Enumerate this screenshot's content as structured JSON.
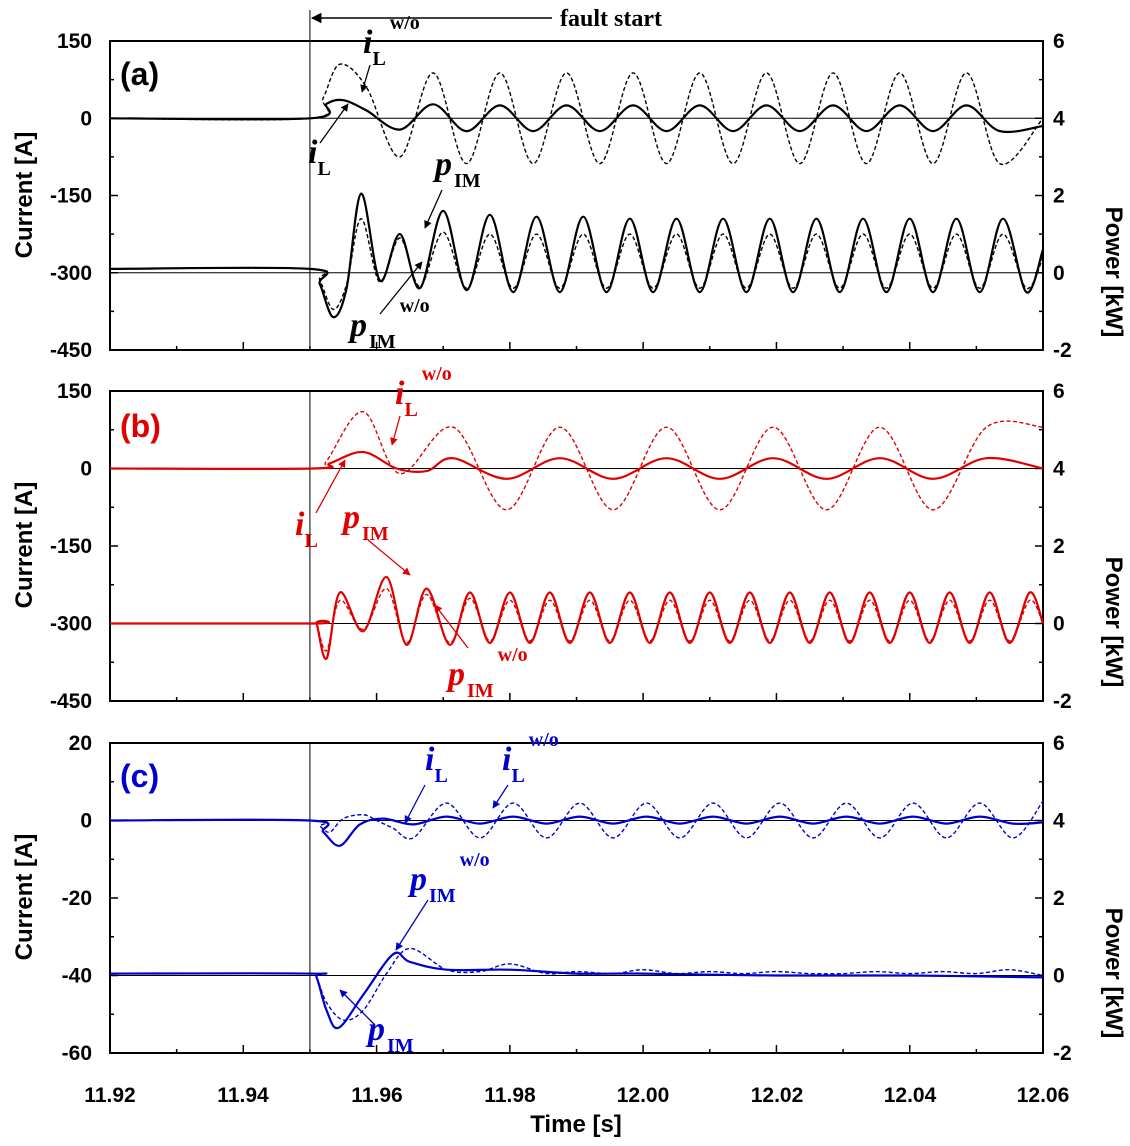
{
  "figure": {
    "fault_label": "fault start",
    "xlabel": "Time [s]",
    "ylabel_left": "Current [A]",
    "ylabel_right": "Power [kW]",
    "x_ticks": [
      "11.92",
      "11.94",
      "11.96",
      "11.98",
      "12.00",
      "12.02",
      "12.04",
      "12.06"
    ]
  },
  "chart_data": [
    {
      "panel": "(a)",
      "type": "line",
      "color": "#000000",
      "fault_time": 11.95,
      "xlim": [
        11.92,
        12.06
      ],
      "ylim_left": [
        -450,
        150
      ],
      "ylim_right": [
        -2,
        6
      ],
      "left_ticks": [
        "150",
        "0",
        "-150",
        "-300",
        "-450"
      ],
      "right_ticks": [
        "6",
        "4",
        "2",
        "0",
        "-2"
      ],
      "series": [
        {
          "name": "i_L^w/o",
          "style": "dashed",
          "axis": "left",
          "x": [
            11.92,
            11.95,
            11.952,
            11.9545,
            11.9585,
            11.9635,
            11.9685,
            11.9735,
            11.9785,
            11.9835,
            11.9885,
            11.9935,
            11.9985,
            12.0035,
            12.0085,
            12.0135,
            12.0185,
            12.0235,
            12.0285,
            12.0335,
            12.0385,
            12.0435,
            12.0485,
            12.0535,
            12.06
          ],
          "y": [
            0,
            0,
            40,
            105,
            60,
            -75,
            88,
            -88,
            88,
            -88,
            88,
            -88,
            88,
            -88,
            88,
            -88,
            88,
            -88,
            88,
            -88,
            88,
            -88,
            88,
            -88,
            0
          ]
        },
        {
          "name": "i_L",
          "style": "solid",
          "axis": "left",
          "x": [
            11.92,
            11.95,
            11.9525,
            11.955,
            11.9585,
            11.9635,
            11.9685,
            11.9735,
            11.9785,
            11.9835,
            11.9885,
            11.9935,
            11.9985,
            12.0035,
            12.0085,
            12.0135,
            12.0185,
            12.0235,
            12.0285,
            12.0335,
            12.0385,
            12.0435,
            12.0485,
            12.0535,
            12.06
          ],
          "y": [
            0,
            0,
            28,
            35,
            15,
            -22,
            27,
            -25,
            25,
            -25,
            25,
            -25,
            25,
            -25,
            25,
            -25,
            25,
            -25,
            25,
            -25,
            25,
            -25,
            25,
            -25,
            -15
          ]
        },
        {
          "name": "p_IM",
          "style": "solid",
          "axis": "right",
          "x": [
            11.92,
            11.95,
            11.9515,
            11.9535,
            11.9555,
            11.9577,
            11.9605,
            11.9635,
            11.9665,
            11.97,
            11.9735,
            11.977,
            11.9805,
            11.984,
            11.9875,
            11.991,
            11.9945,
            11.998,
            12.0015,
            12.005,
            12.0085,
            12.012,
            12.0155,
            12.019,
            12.0225,
            12.026,
            12.0295,
            12.033,
            12.0365,
            12.04,
            12.0435,
            12.047,
            12.0505,
            12.054,
            12.0575,
            12.06
          ],
          "y": [
            0.1,
            0.1,
            -0.3,
            -1.15,
            -0.4,
            2.05,
            -0.2,
            1.0,
            -0.4,
            1.6,
            -0.45,
            1.5,
            -0.5,
            1.45,
            -0.5,
            1.45,
            -0.5,
            1.4,
            -0.5,
            1.4,
            -0.5,
            1.4,
            -0.5,
            1.4,
            -0.5,
            1.4,
            -0.5,
            1.4,
            -0.5,
            1.4,
            -0.5,
            1.4,
            -0.5,
            1.4,
            -0.5,
            0.6
          ]
        },
        {
          "name": "p_IM^w/o",
          "style": "dashed",
          "axis": "right",
          "x": [
            11.92,
            11.95,
            11.9515,
            11.9535,
            11.9555,
            11.9577,
            11.9605,
            11.9635,
            11.9665,
            11.97,
            11.9735,
            11.977,
            11.9805,
            11.984,
            11.9875,
            11.991,
            11.9945,
            11.998,
            12.0015,
            12.005,
            12.0085,
            12.012,
            12.0155,
            12.019,
            12.0225,
            12.026,
            12.0295,
            12.033,
            12.0365,
            12.04,
            12.0435,
            12.047,
            12.0505,
            12.054,
            12.0575,
            12.06
          ],
          "y": [
            0.1,
            0.1,
            -0.2,
            -0.95,
            -0.3,
            1.4,
            -0.25,
            0.9,
            -0.35,
            1.05,
            -0.4,
            1.0,
            -0.4,
            1.0,
            -0.4,
            1.0,
            -0.4,
            1.0,
            -0.4,
            1.0,
            -0.4,
            1.0,
            -0.4,
            1.0,
            -0.4,
            1.0,
            -0.4,
            1.0,
            -0.4,
            1.0,
            -0.4,
            1.0,
            -0.4,
            1.0,
            -0.4,
            0.4
          ]
        }
      ],
      "annotations": [
        {
          "text": "i",
          "sub": "L",
          "sup": "w/o"
        },
        {
          "text": "i",
          "sub": "L",
          "sup": ""
        },
        {
          "text": "p",
          "sub": "IM",
          "sup": ""
        },
        {
          "text": "p",
          "sub": "IM",
          "sup": "w/o"
        }
      ]
    },
    {
      "panel": "(b)",
      "type": "line",
      "color": "#e00000",
      "fault_time": 11.95,
      "xlim": [
        11.92,
        12.06
      ],
      "ylim_left": [
        -450,
        150
      ],
      "ylim_right": [
        -2,
        6
      ],
      "left_ticks": [
        "150",
        "0",
        "-150",
        "-300",
        "-450"
      ],
      "right_ticks": [
        "6",
        "4",
        "2",
        "0",
        "-2"
      ],
      "series": [
        {
          "name": "i_L^w/o",
          "style": "dashed",
          "axis": "left",
          "x": [
            11.92,
            11.9505,
            11.9525,
            11.958,
            11.9635,
            11.9715,
            11.9795,
            11.9875,
            11.9955,
            12.0035,
            12.0115,
            12.0195,
            12.0275,
            12.0355,
            12.0435,
            12.0515,
            12.06
          ],
          "y": [
            0,
            0,
            15,
            110,
            -10,
            80,
            -80,
            80,
            -80,
            80,
            -80,
            80,
            -80,
            80,
            -80,
            80,
            80
          ]
        },
        {
          "name": "i_L",
          "style": "solid",
          "axis": "left",
          "x": [
            11.92,
            11.9505,
            11.953,
            11.958,
            11.963,
            11.9675,
            11.9715,
            11.9795,
            11.9875,
            11.9955,
            12.0035,
            12.0115,
            12.0195,
            12.0275,
            12.0355,
            12.0435,
            12.0515,
            12.06
          ],
          "y": [
            0,
            0,
            10,
            32,
            0,
            -5,
            20,
            -20,
            20,
            -20,
            20,
            -20,
            20,
            -20,
            20,
            -20,
            20,
            0
          ]
        },
        {
          "name": "p_IM",
          "style": "solid",
          "axis": "right",
          "x": [
            11.92,
            11.9505,
            11.951,
            11.9525,
            11.9545,
            11.958,
            11.9615,
            11.9645,
            11.9675,
            11.971,
            11.974,
            11.977,
            11.98,
            11.983,
            11.986,
            11.989,
            11.992,
            11.995,
            11.998,
            12.001,
            12.004,
            12.007,
            12.01,
            12.013,
            12.016,
            12.019,
            12.022,
            12.025,
            12.028,
            12.031,
            12.034,
            12.037,
            12.04,
            12.043,
            12.046,
            12.049,
            12.052,
            12.055,
            12.058,
            12.06
          ],
          "y": [
            0,
            0,
            0,
            -0.9,
            0.8,
            -0.2,
            1.2,
            -0.55,
            0.9,
            -0.55,
            0.8,
            -0.5,
            0.8,
            -0.5,
            0.8,
            -0.5,
            0.8,
            -0.5,
            0.8,
            -0.5,
            0.8,
            -0.5,
            0.8,
            -0.5,
            0.8,
            -0.5,
            0.8,
            -0.5,
            0.8,
            -0.5,
            0.8,
            -0.5,
            0.8,
            -0.5,
            0.8,
            -0.5,
            0.8,
            -0.5,
            0.8,
            0
          ]
        },
        {
          "name": "p_IM^w/o",
          "style": "dashed",
          "axis": "right",
          "x": [
            11.92,
            11.9505,
            11.951,
            11.9525,
            11.9545,
            11.958,
            11.9615,
            11.9645,
            11.9675,
            11.971,
            11.974,
            11.977,
            11.98,
            11.983,
            11.986,
            11.989,
            11.992,
            11.995,
            11.998,
            12.001,
            12.004,
            12.007,
            12.01,
            12.013,
            12.016,
            12.019,
            12.022,
            12.025,
            12.028,
            12.031,
            12.034,
            12.037,
            12.04,
            12.043,
            12.046,
            12.049,
            12.052,
            12.055,
            12.058,
            12.06
          ],
          "y": [
            0,
            0,
            0,
            -0.7,
            0.6,
            -0.15,
            0.9,
            -0.5,
            0.75,
            -0.5,
            0.65,
            -0.45,
            0.6,
            -0.45,
            0.6,
            -0.45,
            0.6,
            -0.45,
            0.6,
            -0.45,
            0.6,
            -0.45,
            0.6,
            -0.45,
            0.6,
            -0.45,
            0.6,
            -0.45,
            0.6,
            -0.45,
            0.6,
            -0.45,
            0.6,
            -0.45,
            0.6,
            -0.45,
            0.6,
            -0.45,
            0.6,
            0
          ]
        }
      ],
      "annotations": [
        {
          "text": "i",
          "sub": "L",
          "sup": "w/o"
        },
        {
          "text": "i",
          "sub": "L",
          "sup": ""
        },
        {
          "text": "p",
          "sub": "IM",
          "sup": ""
        },
        {
          "text": "p",
          "sub": "IM",
          "sup": "w/o"
        }
      ]
    },
    {
      "panel": "(c)",
      "type": "line",
      "color": "#0000cc",
      "fault_time": 11.95,
      "xlim": [
        11.92,
        12.06
      ],
      "ylim_left": [
        -60,
        20
      ],
      "ylim_right": [
        -2,
        6
      ],
      "left_ticks": [
        "20",
        "0",
        "-20",
        "-40",
        "-60"
      ],
      "right_ticks": [
        "6",
        "4",
        "2",
        "0",
        "-2"
      ],
      "series": [
        {
          "name": "i_L^w/o",
          "style": "dashed",
          "axis": "left",
          "x": [
            11.92,
            11.95,
            11.9515,
            11.953,
            11.955,
            11.958,
            11.96,
            11.9625,
            11.9655,
            11.9705,
            11.9755,
            11.9805,
            11.9855,
            11.9905,
            11.9955,
            12.0005,
            12.0055,
            12.0105,
            12.0155,
            12.0205,
            12.0255,
            12.0305,
            12.0355,
            12.0405,
            12.0455,
            12.0505,
            12.0555,
            12.06
          ],
          "y": [
            0,
            0,
            -1.5,
            -3,
            0.5,
            1.5,
            0,
            -2,
            -4.5,
            4.5,
            -4.5,
            4.5,
            -4.5,
            4.5,
            -4.5,
            4.5,
            -4.5,
            4.5,
            -4.5,
            4.5,
            -4.5,
            4.5,
            -4.5,
            4.5,
            -4.5,
            4.5,
            -4.5,
            5
          ]
        },
        {
          "name": "i_L",
          "style": "solid",
          "axis": "left",
          "x": [
            11.92,
            11.95,
            11.952,
            11.9545,
            11.9575,
            11.961,
            11.9655,
            11.9705,
            11.9755,
            11.9805,
            11.9855,
            11.9905,
            11.9955,
            12.0005,
            12.0055,
            12.0105,
            12.0155,
            12.0205,
            12.0255,
            12.0305,
            12.0355,
            12.0405,
            12.0455,
            12.0505,
            12.0555,
            12.06
          ],
          "y": [
            0,
            0,
            -3,
            -6.5,
            -1,
            0.5,
            -1,
            1,
            -0.8,
            1,
            -0.8,
            1,
            -0.8,
            1,
            -0.8,
            1,
            -0.8,
            1,
            -0.8,
            1,
            -0.8,
            1,
            -0.8,
            1,
            -0.8,
            -0.5
          ]
        },
        {
          "name": "p_IM",
          "style": "solid",
          "axis": "right",
          "x": [
            11.92,
            11.95,
            11.951,
            11.9525,
            11.9543,
            11.958,
            11.9625,
            11.965,
            11.9705,
            11.98,
            11.99,
            12.0,
            12.02,
            12.04,
            12.06
          ],
          "y": [
            0.05,
            0.05,
            -0.05,
            -0.9,
            -1.35,
            -0.5,
            0.55,
            0.35,
            0.15,
            0.15,
            0.05,
            0.05,
            0.0,
            0.0,
            -0.05
          ]
        },
        {
          "name": "p_IM^w/o",
          "style": "dashed",
          "axis": "right",
          "x": [
            11.92,
            11.95,
            11.951,
            11.9525,
            11.955,
            11.958,
            11.9615,
            11.965,
            11.9705,
            11.9755,
            11.98,
            11.9855,
            11.99,
            11.9955,
            12.0,
            12.005,
            12.01,
            12.015,
            12.02,
            12.025,
            12.03,
            12.035,
            12.04,
            12.045,
            12.05,
            12.055,
            12.06
          ],
          "y": [
            0.05,
            0.05,
            -0.05,
            -0.7,
            -1.15,
            -0.9,
            0.05,
            0.7,
            0.15,
            0.1,
            0.3,
            0.05,
            0.1,
            0.05,
            0.15,
            0.05,
            0.1,
            0.05,
            0.1,
            0.05,
            0.05,
            0.1,
            0.05,
            0.1,
            0.05,
            0.15,
            0.0
          ]
        }
      ],
      "annotations": [
        {
          "text": "i",
          "sub": "L",
          "sup": ""
        },
        {
          "text": "i",
          "sub": "L",
          "sup": "w/o"
        },
        {
          "text": "p",
          "sub": "IM",
          "sup": "w/o"
        },
        {
          "text": "p",
          "sub": "IM",
          "sup": ""
        }
      ]
    }
  ]
}
